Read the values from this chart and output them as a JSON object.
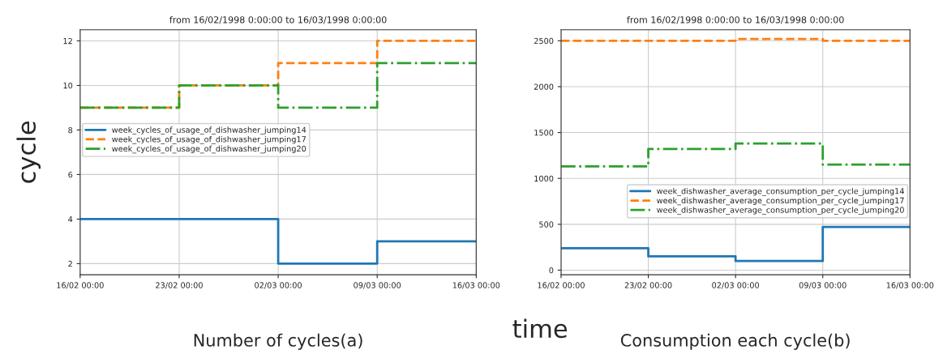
{
  "chart_data": [
    {
      "type": "step",
      "title": "from 16/02/1998 0:00:00 to 16/03/1998 0:00:00",
      "ylabel": "cycle",
      "x": [
        "1998-02-16",
        "1998-02-23",
        "1998-03-02",
        "1998-03-09",
        "1998-03-16"
      ],
      "series": [
        {
          "name": "week_cycles_of_usage_of_dishwasher_jumping14",
          "color": "#1f77b4",
          "line_style": "solid",
          "values": [
            4,
            4,
            2,
            3,
            3
          ]
        },
        {
          "name": "week_cycles_of_usage_of_dishwasher_jumping17",
          "color": "#ff7f0e",
          "line_style": "dashed",
          "values": [
            9,
            10,
            11,
            12,
            12
          ]
        },
        {
          "name": "week_cycles_of_usage_of_dishwasher_jumping20",
          "color": "#2ca02c",
          "line_style": "dashdot",
          "values": [
            9,
            10,
            9,
            11,
            11
          ]
        }
      ],
      "xlim": [
        "1998-02-16",
        "1998-03-16"
      ],
      "xticks": [
        {
          "value": "1998-02-16",
          "label": "16/02 00:00"
        },
        {
          "value": "1998-02-23",
          "label": "23/02 00:00"
        },
        {
          "value": "1998-03-02",
          "label": "02/03 00:00"
        },
        {
          "value": "1998-03-09",
          "label": "09/03 00:00"
        },
        {
          "value": "1998-03-16",
          "label": "16/03 00:00"
        }
      ],
      "ylim": [
        1.5,
        12.5
      ],
      "yticks": [
        2,
        4,
        6,
        8,
        10,
        12
      ],
      "grid": true,
      "legend": "left",
      "annotations": [
        "Number of cycles(a)"
      ]
    },
    {
      "type": "step",
      "title": "from 16/02/1998 0:00:00 to 16/03/1998 0:00:00",
      "xlabel": "time",
      "x": [
        "1998-02-16",
        "1998-02-23",
        "1998-03-02",
        "1998-03-09",
        "1998-03-16"
      ],
      "series": [
        {
          "name": "week_dishwasher_average_consumption_per_cycle_jumping14",
          "color": "#1f77b4",
          "line_style": "solid",
          "values": [
            240,
            150,
            100,
            470,
            470
          ]
        },
        {
          "name": "week_dishwasher_average_consumption_per_cycle_jumping17",
          "color": "#ff7f0e",
          "line_style": "dashed",
          "values": [
            2500,
            2500,
            2520,
            2500,
            2500
          ]
        },
        {
          "name": "week_dishwasher_average_consumption_per_cycle_jumping20",
          "color": "#2ca02c",
          "line_style": "dashdot",
          "values": [
            1130,
            1320,
            1380,
            1150,
            1150
          ]
        }
      ],
      "xlim": [
        "1998-02-16",
        "1998-03-16"
      ],
      "xticks": [
        {
          "value": "1998-02-16",
          "label": "16/02 00:00"
        },
        {
          "value": "1998-02-23",
          "label": "23/02 00:00"
        },
        {
          "value": "1998-03-02",
          "label": "02/03 00:00"
        },
        {
          "value": "1998-03-09",
          "label": "09/03 00:00"
        },
        {
          "value": "1998-03-16",
          "label": "16/03 00:00"
        }
      ],
      "ylim": [
        -50,
        2620
      ],
      "yticks": [
        0,
        500,
        1000,
        1500,
        2000,
        2500
      ],
      "grid": true,
      "legend": "right",
      "annotations": [
        "Consumption each cycle(b)"
      ]
    }
  ]
}
